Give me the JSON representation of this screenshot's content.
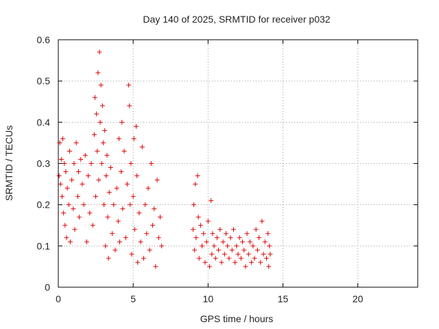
{
  "chart_data": {
    "type": "scatter",
    "title": "Day 140 of 2025, SRMTID for receiver p032",
    "xlabel": "GPS time / hours",
    "ylabel": "SRMTID / TECUs",
    "xlim": [
      0,
      24
    ],
    "ylim": [
      0,
      0.6
    ],
    "xticks": [
      0,
      5,
      10,
      15,
      20
    ],
    "yticks": [
      0,
      0.1,
      0.2,
      0.3,
      0.4,
      0.5,
      0.6
    ],
    "xtick_labels": [
      "0",
      "5",
      "10",
      "15",
      "20"
    ],
    "ytick_labels": [
      "0",
      "0.1",
      "0.2",
      "0.3",
      "0.4",
      "0.5",
      "0.6"
    ],
    "grid": true,
    "marker": "+",
    "color": "#e00000",
    "series": [
      {
        "points": [
          [
            0.05,
            0.27
          ],
          [
            0.1,
            0.35
          ],
          [
            0.15,
            0.25
          ],
          [
            0.2,
            0.31
          ],
          [
            0.25,
            0.22
          ],
          [
            0.3,
            0.36
          ],
          [
            0.35,
            0.18
          ],
          [
            0.4,
            0.3
          ],
          [
            0.45,
            0.15
          ],
          [
            0.5,
            0.28
          ],
          [
            0.55,
            0.12
          ],
          [
            0.6,
            0.24
          ],
          [
            0.7,
            0.2
          ],
          [
            0.75,
            0.33
          ],
          [
            0.8,
            0.11
          ],
          [
            0.9,
            0.26
          ],
          [
            1.0,
            0.19
          ],
          [
            1.05,
            0.3
          ],
          [
            1.1,
            0.14
          ],
          [
            1.2,
            0.35
          ],
          [
            1.3,
            0.22
          ],
          [
            1.35,
            0.28
          ],
          [
            1.4,
            0.17
          ],
          [
            1.5,
            0.31
          ],
          [
            1.6,
            0.25
          ],
          [
            1.7,
            0.2
          ],
          [
            1.8,
            0.32
          ],
          [
            1.9,
            0.11
          ],
          [
            2.0,
            0.27
          ],
          [
            2.1,
            0.18
          ],
          [
            2.2,
            0.3
          ],
          [
            2.3,
            0.15
          ],
          [
            2.4,
            0.37
          ],
          [
            2.45,
            0.46
          ],
          [
            2.5,
            0.22
          ],
          [
            2.55,
            0.42
          ],
          [
            2.6,
            0.33
          ],
          [
            2.65,
            0.52
          ],
          [
            2.7,
            0.26
          ],
          [
            2.75,
            0.57
          ],
          [
            2.8,
            0.4
          ],
          [
            2.85,
            0.49
          ],
          [
            2.9,
            0.3
          ],
          [
            2.95,
            0.44
          ],
          [
            3.0,
            0.35
          ],
          [
            3.05,
            0.2
          ],
          [
            3.1,
            0.38
          ],
          [
            3.15,
            0.1
          ],
          [
            3.2,
            0.27
          ],
          [
            3.25,
            0.32
          ],
          [
            3.3,
            0.17
          ],
          [
            3.35,
            0.07
          ],
          [
            3.4,
            0.23
          ],
          [
            3.5,
            0.29
          ],
          [
            3.6,
            0.13
          ],
          [
            3.7,
            0.2
          ],
          [
            3.8,
            0.09
          ],
          [
            3.9,
            0.24
          ],
          [
            4.0,
            0.16
          ],
          [
            4.05,
            0.36
          ],
          [
            4.1,
            0.11
          ],
          [
            4.2,
            0.28
          ],
          [
            4.25,
            0.4
          ],
          [
            4.3,
            0.19
          ],
          [
            4.4,
            0.33
          ],
          [
            4.5,
            0.12
          ],
          [
            4.6,
            0.25
          ],
          [
            4.7,
            0.49
          ],
          [
            4.75,
            0.44
          ],
          [
            4.8,
            0.2
          ],
          [
            4.85,
            0.3
          ],
          [
            4.9,
            0.08
          ],
          [
            5.0,
            0.22
          ],
          [
            5.05,
            0.36
          ],
          [
            5.1,
            0.14
          ],
          [
            5.2,
            0.39
          ],
          [
            5.25,
            0.27
          ],
          [
            5.3,
            0.06
          ],
          [
            5.4,
            0.18
          ],
          [
            5.5,
            0.11
          ],
          [
            5.6,
            0.34
          ],
          [
            5.7,
            0.07
          ],
          [
            5.8,
            0.2
          ],
          [
            5.9,
            0.13
          ],
          [
            6.0,
            0.24
          ],
          [
            6.1,
            0.09
          ],
          [
            6.2,
            0.3
          ],
          [
            6.3,
            0.15
          ],
          [
            6.4,
            0.19
          ],
          [
            6.5,
            0.05
          ],
          [
            6.6,
            0.26
          ],
          [
            6.7,
            0.12
          ],
          [
            6.8,
            0.17
          ],
          [
            6.9,
            0.1
          ],
          [
            9.0,
            0.14
          ],
          [
            9.05,
            0.2
          ],
          [
            9.1,
            0.09
          ],
          [
            9.15,
            0.25
          ],
          [
            9.2,
            0.12
          ],
          [
            9.3,
            0.27
          ],
          [
            9.35,
            0.17
          ],
          [
            9.4,
            0.07
          ],
          [
            9.5,
            0.15
          ],
          [
            9.6,
            0.1
          ],
          [
            9.7,
            0.13
          ],
          [
            9.8,
            0.06
          ],
          [
            9.9,
            0.11
          ],
          [
            10.0,
            0.16
          ],
          [
            10.1,
            0.05
          ],
          [
            10.2,
            0.21
          ],
          [
            10.25,
            0.08
          ],
          [
            10.3,
            0.13
          ],
          [
            10.4,
            0.1
          ],
          [
            10.5,
            0.07
          ],
          [
            10.6,
            0.12
          ],
          [
            10.7,
            0.09
          ],
          [
            10.8,
            0.14
          ],
          [
            10.9,
            0.06
          ],
          [
            11.0,
            0.11
          ],
          [
            11.1,
            0.08
          ],
          [
            11.2,
            0.13
          ],
          [
            11.3,
            0.1
          ],
          [
            11.4,
            0.07
          ],
          [
            11.5,
            0.12
          ],
          [
            11.6,
            0.09
          ],
          [
            11.7,
            0.14
          ],
          [
            11.8,
            0.06
          ],
          [
            11.9,
            0.1
          ],
          [
            12.0,
            0.08
          ],
          [
            12.1,
            0.12
          ],
          [
            12.2,
            0.07
          ],
          [
            12.3,
            0.11
          ],
          [
            12.4,
            0.09
          ],
          [
            12.5,
            0.05
          ],
          [
            12.6,
            0.13
          ],
          [
            12.7,
            0.08
          ],
          [
            12.8,
            0.11
          ],
          [
            12.9,
            0.06
          ],
          [
            13.0,
            0.1
          ],
          [
            13.1,
            0.07
          ],
          [
            13.2,
            0.14
          ],
          [
            13.3,
            0.09
          ],
          [
            13.4,
            0.12
          ],
          [
            13.5,
            0.06
          ],
          [
            13.6,
            0.16
          ],
          [
            13.7,
            0.08
          ],
          [
            13.8,
            0.11
          ],
          [
            13.9,
            0.07
          ],
          [
            14.0,
            0.13
          ],
          [
            14.05,
            0.05
          ],
          [
            14.1,
            0.1
          ],
          [
            14.15,
            0.08
          ]
        ]
      }
    ]
  }
}
